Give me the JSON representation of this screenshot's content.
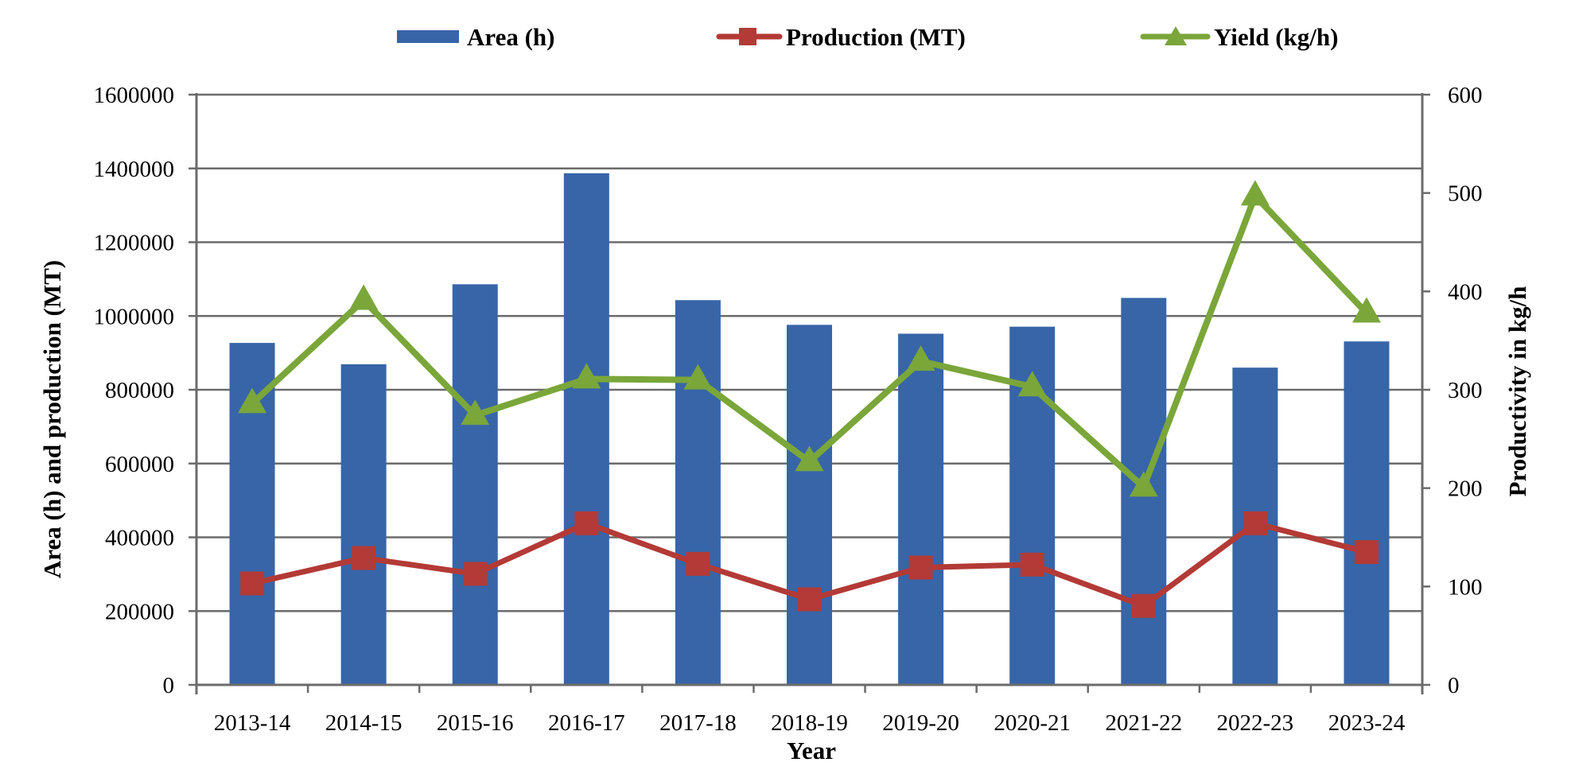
{
  "chart_data": {
    "type": "bar+line",
    "title": "",
    "xlabel": "Year",
    "ylabel_left": "Area (h) and production (MT)",
    "ylabel_right": "Productivity in kg/h",
    "categories": [
      "2013-14",
      "2014-15",
      "2015-16",
      "2016-17",
      "2017-18",
      "2018-19",
      "2019-20",
      "2020-21",
      "2021-22",
      "2022-23",
      "2023-24"
    ],
    "ylim_left": [
      0,
      1600000
    ],
    "ylim_right": [
      0,
      600
    ],
    "yticks_left": [
      "0",
      "200000",
      "400000",
      "600000",
      "800000",
      "1000000",
      "1200000",
      "1400000",
      "1600000"
    ],
    "yticks_right": [
      "0",
      "100",
      "200",
      "300",
      "400",
      "500",
      "600"
    ],
    "grid": true,
    "legend_position": "top",
    "series": [
      {
        "name": "Area (h)",
        "type": "bar",
        "axis": "left",
        "color": "#3765a8",
        "values": [
          927000,
          869000,
          1086000,
          1387000,
          1043000,
          976000,
          952000,
          971000,
          1049000,
          860000,
          931000
        ]
      },
      {
        "name": "Production (MT)",
        "type": "line",
        "marker": "square",
        "axis": "left",
        "color": "#b33a36",
        "values": [
          275000,
          344000,
          301000,
          438000,
          328000,
          232000,
          318000,
          326000,
          214000,
          438000,
          360000
        ]
      },
      {
        "name": "Yield (kg/h)",
        "type": "line",
        "marker": "triangle",
        "axis": "right",
        "color": "#7aa63a",
        "values": [
          286,
          391,
          274,
          311,
          310,
          227,
          329,
          303,
          201,
          497,
          378
        ]
      }
    ]
  },
  "colors": {
    "axis": "#6b6b6b",
    "grid": "#6b6b6b"
  }
}
